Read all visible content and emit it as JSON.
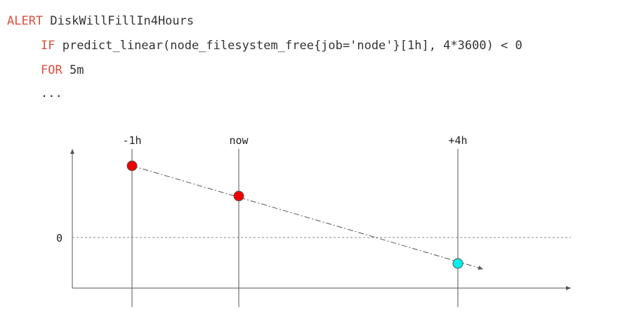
{
  "code": {
    "line1": {
      "keyword": "ALERT",
      "text": " DiskWillFillIn4Hours"
    },
    "line2": {
      "keyword": "IF",
      "text": " predict_linear(node_filesystem_free{job='node'}[1h], 4*3600) < 0"
    },
    "line3": {
      "keyword": "FOR",
      "text": " 5m"
    },
    "line4": {
      "text": "..."
    }
  },
  "diagram": {
    "time_labels": {
      "past": "-1h",
      "now": "now",
      "future": "+4h"
    },
    "zero_label": "0",
    "colors": {
      "keyword": "#d9503f",
      "observed_point": "#ee0000",
      "predicted_point": "#00eeee",
      "axis": "#555555",
      "zero_line": "#888888"
    },
    "points": [
      {
        "time": "-1h",
        "kind": "observed"
      },
      {
        "time": "now",
        "kind": "observed"
      },
      {
        "time": "+4h",
        "kind": "predicted"
      }
    ]
  }
}
